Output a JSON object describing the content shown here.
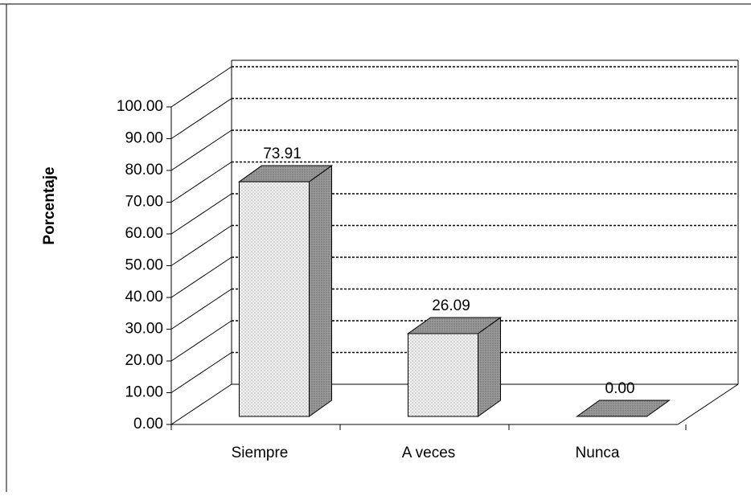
{
  "chart_data": {
    "type": "bar3d",
    "y_label": "Porcentaje",
    "categories": [
      "Siempre",
      "A veces",
      "Nunca"
    ],
    "values": [
      73.91,
      26.09,
      0
    ],
    "value_labels": [
      "73.91",
      "26.09",
      "0.00"
    ],
    "ylim": [
      0,
      100
    ],
    "yticks": [
      {
        "value": 0,
        "label": "0.00"
      },
      {
        "value": 10,
        "label": "10.00"
      },
      {
        "value": 20,
        "label": "20.00"
      },
      {
        "value": 30,
        "label": "30.00"
      },
      {
        "value": 40,
        "label": "40.00"
      },
      {
        "value": 50,
        "label": "50.00"
      },
      {
        "value": 60,
        "label": "60.00"
      },
      {
        "value": 70,
        "label": "70.00"
      },
      {
        "value": 80,
        "label": "80.00"
      },
      {
        "value": 90,
        "label": "90.00"
      },
      {
        "value": 100,
        "label": "100.00"
      }
    ],
    "grid": true
  }
}
